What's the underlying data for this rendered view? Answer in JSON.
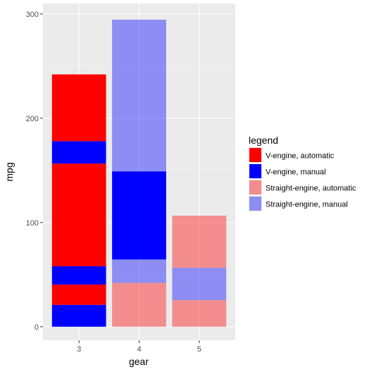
{
  "chart_data": {
    "type": "bar",
    "stacked": true,
    "title": "",
    "xlabel": "gear",
    "ylabel": "mpg",
    "categories": [
      "3",
      "4",
      "5"
    ],
    "yticks": [
      "0",
      "100",
      "200",
      "300"
    ],
    "ylim": [
      -13,
      310
    ],
    "grid": true,
    "legend": {
      "title": "legend",
      "position": "right",
      "entries": [
        {
          "label": "V-engine, automatic",
          "color": "#ff0000",
          "opacity": 1
        },
        {
          "label": "V-engine, manual",
          "color": "#0000ff",
          "opacity": 1
        },
        {
          "label": "Straight-engine, automatic",
          "color": "#ff0000",
          "opacity": 0.4
        },
        {
          "label": "Straight-engine, manual",
          "color": "#0000ff",
          "opacity": 0.4
        }
      ]
    },
    "stacks": [
      {
        "category": "3",
        "segments": [
          {
            "series": "V-engine, manual",
            "value": 21
          },
          {
            "series": "V-engine, automatic",
            "value": 19.5
          },
          {
            "series": "V-engine, manual",
            "value": 17.5
          },
          {
            "series": "V-engine, automatic",
            "value": 98.5
          },
          {
            "series": "V-engine, manual",
            "value": 21.5
          },
          {
            "series": "V-engine, automatic",
            "value": 64
          }
        ]
      },
      {
        "category": "4",
        "segments": [
          {
            "series": "Straight-engine, automatic",
            "value": 42
          },
          {
            "series": "Straight-engine, manual",
            "value": 22.5
          },
          {
            "series": "V-engine, manual",
            "value": 84.5
          },
          {
            "series": "Straight-engine, manual",
            "value": 145.5
          }
        ]
      },
      {
        "category": "5",
        "segments": [
          {
            "series": "Straight-engine, automatic",
            "value": 25.5
          },
          {
            "series": "Straight-engine, manual",
            "value": 31
          },
          {
            "series": "Straight-engine, automatic",
            "value": 50
          }
        ]
      }
    ]
  },
  "colors": {
    "panel_background": "#ebebeb",
    "grid_major": "#ffffff",
    "grid_minor": "#f5f5f5"
  }
}
